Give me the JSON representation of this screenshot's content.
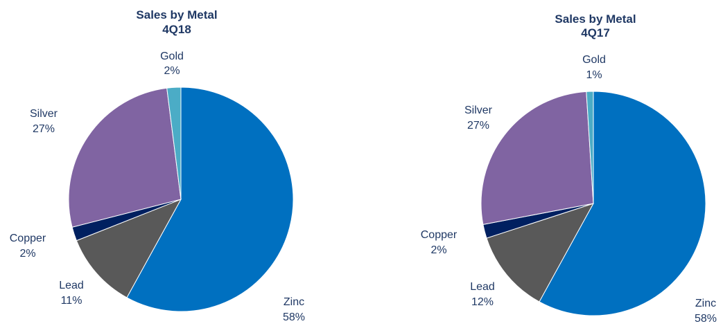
{
  "chart_data": [
    {
      "type": "pie",
      "title": "Sales by Metal",
      "subtitle": "4Q18",
      "slices": [
        {
          "label": "Zinc",
          "value_label": "58%",
          "value": 58,
          "color": "#0070c0"
        },
        {
          "label": "Lead",
          "value_label": "11%",
          "value": 11,
          "color": "#595959"
        },
        {
          "label": "Copper",
          "value_label": "2%",
          "value": 2,
          "color": "#002060"
        },
        {
          "label": "Silver",
          "value_label": "27%",
          "value": 27,
          "color": "#8064a2"
        },
        {
          "label": "Gold",
          "value_label": "2%",
          "value": 2,
          "color": "#4bacc6"
        }
      ]
    },
    {
      "type": "pie",
      "title": "Sales by Metal",
      "subtitle": "4Q17",
      "slices": [
        {
          "label": "Zinc",
          "value_label": "58%",
          "value": 58,
          "color": "#0070c0"
        },
        {
          "label": "Lead",
          "value_label": "12%",
          "value": 12,
          "color": "#595959"
        },
        {
          "label": "Copper",
          "value_label": "2%",
          "value": 2,
          "color": "#002060"
        },
        {
          "label": "Silver",
          "value_label": "27%",
          "value": 27,
          "color": "#8064a2"
        },
        {
          "label": "Gold",
          "value_label": "1%",
          "value": 1,
          "color": "#4bacc6"
        }
      ]
    }
  ]
}
